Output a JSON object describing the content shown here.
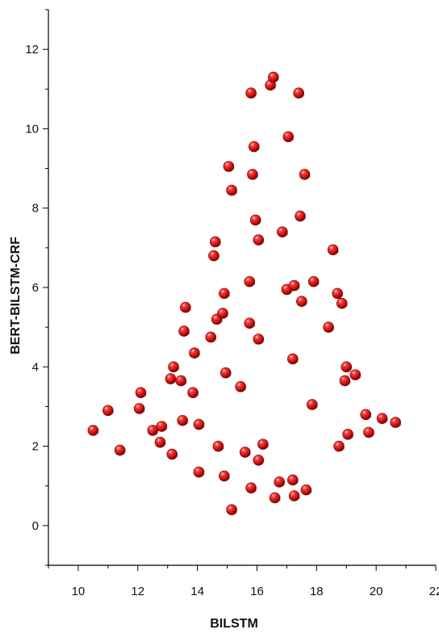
{
  "chart_data": {
    "type": "scatter",
    "title": "",
    "xlabel": "BILSTM",
    "ylabel": "BERT-BILSTM-CRF",
    "xlim": [
      9,
      22
    ],
    "ylim": [
      -1,
      13
    ],
    "xticks": [
      10,
      12,
      14,
      16,
      18,
      20,
      22
    ],
    "yticks": [
      0,
      2,
      4,
      6,
      8,
      10,
      12
    ],
    "grid": false,
    "marker_color": "#d11a1a",
    "series": [
      {
        "points": [
          [
            10.5,
            2.4
          ],
          [
            11.0,
            2.9
          ],
          [
            11.4,
            1.9
          ],
          [
            12.1,
            3.35
          ],
          [
            12.05,
            2.95
          ],
          [
            12.5,
            2.4
          ],
          [
            12.75,
            2.1
          ],
          [
            12.8,
            2.5
          ],
          [
            13.1,
            3.7
          ],
          [
            13.2,
            4.0
          ],
          [
            13.15,
            1.8
          ],
          [
            13.45,
            3.65
          ],
          [
            13.5,
            2.65
          ],
          [
            13.55,
            4.9
          ],
          [
            13.6,
            5.5
          ],
          [
            13.85,
            3.35
          ],
          [
            13.9,
            4.35
          ],
          [
            14.05,
            2.55
          ],
          [
            14.05,
            1.35
          ],
          [
            14.45,
            4.75
          ],
          [
            14.55,
            6.8
          ],
          [
            14.6,
            7.15
          ],
          [
            14.65,
            5.2
          ],
          [
            14.7,
            2.0
          ],
          [
            14.85,
            5.35
          ],
          [
            14.9,
            5.85
          ],
          [
            14.9,
            1.25
          ],
          [
            14.95,
            3.85
          ],
          [
            15.05,
            9.05
          ],
          [
            15.15,
            8.45
          ],
          [
            15.15,
            0.4
          ],
          [
            15.45,
            3.5
          ],
          [
            15.6,
            1.85
          ],
          [
            15.75,
            6.15
          ],
          [
            15.75,
            5.1
          ],
          [
            15.8,
            10.9
          ],
          [
            15.8,
            0.95
          ],
          [
            15.85,
            8.85
          ],
          [
            15.9,
            9.55
          ],
          [
            15.95,
            7.7
          ],
          [
            16.05,
            7.2
          ],
          [
            16.05,
            4.7
          ],
          [
            16.05,
            1.65
          ],
          [
            16.2,
            2.05
          ],
          [
            16.45,
            11.1
          ],
          [
            16.55,
            11.3
          ],
          [
            16.6,
            0.7
          ],
          [
            16.75,
            1.1
          ],
          [
            16.85,
            7.4
          ],
          [
            17.0,
            5.95
          ],
          [
            17.05,
            9.8
          ],
          [
            17.2,
            4.2
          ],
          [
            17.25,
            6.05
          ],
          [
            17.2,
            1.15
          ],
          [
            17.25,
            0.75
          ],
          [
            17.4,
            10.9
          ],
          [
            17.45,
            7.8
          ],
          [
            17.5,
            5.65
          ],
          [
            17.6,
            8.85
          ],
          [
            17.65,
            0.9
          ],
          [
            17.85,
            3.05
          ],
          [
            17.9,
            6.15
          ],
          [
            18.4,
            5.0
          ],
          [
            18.55,
            6.95
          ],
          [
            18.7,
            5.85
          ],
          [
            18.75,
            2.0
          ],
          [
            18.85,
            5.6
          ],
          [
            18.95,
            3.65
          ],
          [
            19.0,
            4.0
          ],
          [
            19.05,
            2.3
          ],
          [
            19.3,
            3.8
          ],
          [
            19.65,
            2.8
          ],
          [
            19.75,
            2.35
          ],
          [
            20.2,
            2.7
          ],
          [
            20.65,
            2.6
          ]
        ]
      }
    ]
  }
}
